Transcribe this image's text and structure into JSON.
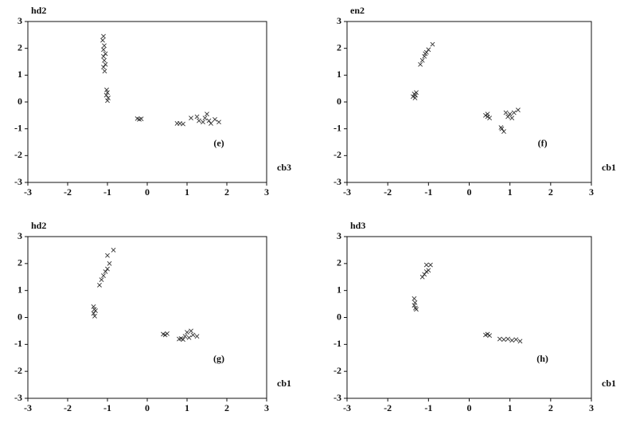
{
  "chart_data": [
    {
      "type": "scatter",
      "ylabel": "hd2",
      "xlabel": "cb3",
      "annotation": "(e)",
      "color": "#333333",
      "marker": "x",
      "x": [
        -1.1,
        -1.12,
        -1.08,
        -1.1,
        -1.05,
        -1.1,
        -1.08,
        -1.05,
        -1.1,
        -1.07,
        -1.02,
        -1.0,
        -1.03,
        -0.98,
        -1.0,
        -0.25,
        -0.2,
        -0.15,
        0.75,
        0.82,
        0.9,
        1.1,
        1.25,
        1.3,
        1.4,
        1.45,
        1.5,
        1.55,
        1.6,
        1.7,
        1.8
      ],
      "y": [
        2.45,
        2.3,
        2.1,
        1.95,
        1.8,
        1.7,
        1.55,
        1.4,
        1.3,
        1.15,
        0.45,
        0.35,
        0.25,
        0.15,
        0.05,
        -0.62,
        -0.65,
        -0.63,
        -0.8,
        -0.8,
        -0.82,
        -0.6,
        -0.55,
        -0.7,
        -0.75,
        -0.6,
        -0.45,
        -0.7,
        -0.8,
        -0.65,
        -0.75
      ],
      "xlim": [
        -3,
        3
      ],
      "ylim": [
        -3,
        3
      ],
      "xticks": [
        -3,
        -2,
        -1,
        0,
        1,
        2,
        3
      ],
      "yticks": [
        -3,
        -2,
        -1,
        0,
        1,
        2,
        3
      ]
    },
    {
      "type": "scatter",
      "ylabel": "en2",
      "xlabel": "cb1",
      "annotation": "(f)",
      "color": "#333333",
      "marker": "x",
      "x": [
        -1.38,
        -1.35,
        -1.32,
        -1.33,
        -1.3,
        -1.2,
        -1.15,
        -1.1,
        -1.08,
        -1.05,
        -1.0,
        -0.9,
        0.4,
        0.45,
        0.5,
        0.45,
        0.8,
        0.85,
        0.78,
        0.9,
        0.95,
        1.0,
        1.05,
        1.1,
        1.2
      ],
      "y": [
        0.2,
        0.3,
        0.25,
        0.15,
        0.35,
        1.4,
        1.55,
        1.7,
        1.8,
        1.85,
        1.95,
        2.15,
        -0.5,
        -0.45,
        -0.6,
        -0.55,
        -1.0,
        -1.1,
        -0.95,
        -0.4,
        -0.55,
        -0.45,
        -0.6,
        -0.4,
        -0.3
      ],
      "xlim": [
        -3,
        3
      ],
      "ylim": [
        -3,
        3
      ],
      "xticks": [
        -3,
        -2,
        -1,
        0,
        1,
        2,
        3
      ],
      "yticks": [
        -3,
        -2,
        -1,
        0,
        1,
        2,
        3
      ]
    },
    {
      "type": "scatter",
      "ylabel": "hd2",
      "xlabel": "cb1",
      "annotation": "(g)",
      "color": "#333333",
      "marker": "x",
      "x": [
        -1.35,
        -1.33,
        -1.35,
        -1.32,
        -1.3,
        -1.2,
        -1.15,
        -1.1,
        -1.05,
        -1.0,
        -0.95,
        -1.0,
        -0.85,
        0.4,
        0.45,
        0.5,
        0.8,
        0.85,
        0.9,
        0.95,
        1.0,
        1.05,
        1.1,
        1.15,
        1.25
      ],
      "y": [
        0.4,
        0.3,
        0.15,
        0.05,
        0.25,
        1.2,
        1.4,
        1.55,
        1.7,
        1.8,
        2.0,
        2.3,
        2.5,
        -0.62,
        -0.65,
        -0.6,
        -0.8,
        -0.78,
        -0.82,
        -0.7,
        -0.55,
        -0.75,
        -0.5,
        -0.65,
        -0.7
      ],
      "xlim": [
        -3,
        3
      ],
      "ylim": [
        -3,
        3
      ],
      "xticks": [
        -3,
        -2,
        -1,
        0,
        1,
        2,
        3
      ],
      "yticks": [
        -3,
        -2,
        -1,
        0,
        1,
        2,
        3
      ]
    },
    {
      "type": "scatter",
      "ylabel": "hd3",
      "xlabel": "cb1",
      "annotation": "(h)",
      "color": "#333333",
      "marker": "x",
      "x": [
        -1.35,
        -1.33,
        -1.35,
        -1.32,
        -1.3,
        -1.15,
        -1.1,
        -1.05,
        -1.0,
        -1.05,
        -0.95,
        0.4,
        0.45,
        0.5,
        0.75,
        0.85,
        0.95,
        1.05,
        1.15,
        1.25
      ],
      "y": [
        0.7,
        0.55,
        0.45,
        0.35,
        0.3,
        1.5,
        1.6,
        1.7,
        1.75,
        1.95,
        1.95,
        -0.65,
        -0.62,
        -0.67,
        -0.8,
        -0.82,
        -0.8,
        -0.85,
        -0.82,
        -0.88
      ],
      "xlim": [
        -3,
        3
      ],
      "ylim": [
        -3,
        3
      ],
      "xticks": [
        -3,
        -2,
        -1,
        0,
        1,
        2,
        3
      ],
      "yticks": [
        -3,
        -2,
        -1,
        0,
        1,
        2,
        3
      ]
    }
  ]
}
